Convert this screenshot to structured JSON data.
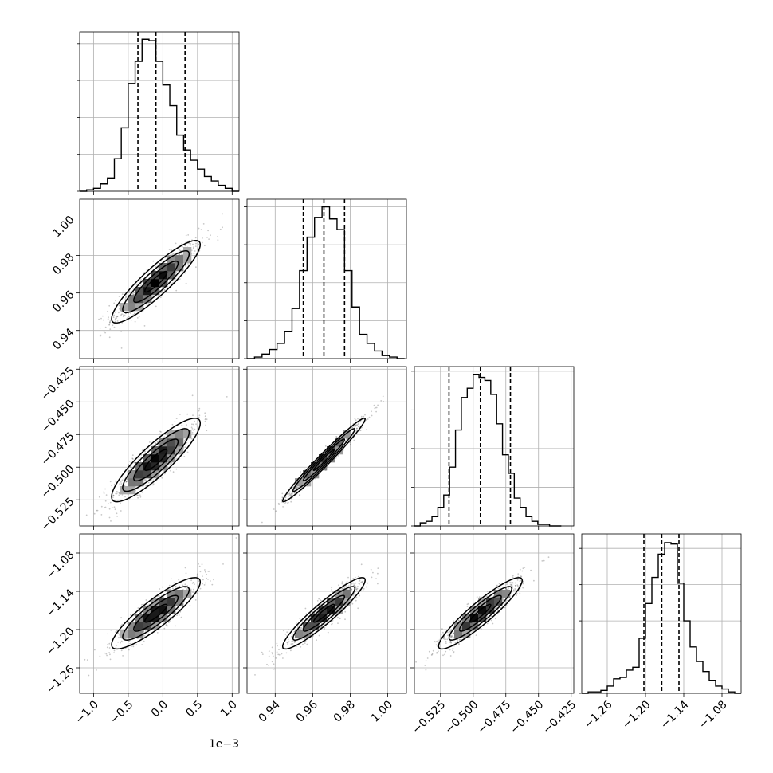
{
  "chart_data": {
    "type": "corner",
    "grid": true,
    "parameters": [
      {
        "key": "p0",
        "range": [
          -1.2,
          1.1
        ],
        "ticks": [
          -1.0,
          -0.5,
          0.0,
          0.5,
          1.0
        ],
        "tick_labels": [
          "−1.0",
          "−0.5",
          "0.0",
          "0.5",
          "1.0"
        ],
        "offset_label": "1e−3",
        "quantiles": [
          -0.36,
          -0.1,
          0.32
        ],
        "hist_centers": [
          -1.15,
          -1.05,
          -0.95,
          -0.85,
          -0.75,
          -0.65,
          -0.55,
          -0.45,
          -0.35,
          -0.25,
          -0.15,
          -0.05,
          0.05,
          0.15,
          0.25,
          0.35,
          0.45,
          0.55,
          0.65,
          0.75,
          0.85,
          0.95,
          1.05
        ],
        "hist_counts": [
          0,
          1,
          2,
          5,
          9,
          22,
          43,
          73,
          88,
          103,
          102,
          88,
          72,
          58,
          38,
          28,
          21,
          15,
          10,
          7,
          4,
          2,
          0
        ],
        "hist_ymax": 108,
        "hist_yticks": [
          0,
          25,
          50,
          75,
          100
        ]
      },
      {
        "key": "p1",
        "range": [
          0.925,
          1.01
        ],
        "ticks": [
          0.94,
          0.96,
          0.98,
          1.0
        ],
        "tick_labels": [
          "0.94",
          "0.96",
          "0.98",
          "1.00"
        ],
        "quantiles": [
          0.955,
          0.966,
          0.977
        ],
        "hist_centers": [
          0.927,
          0.931,
          0.935,
          0.939,
          0.943,
          0.947,
          0.951,
          0.955,
          0.959,
          0.963,
          0.967,
          0.971,
          0.975,
          0.979,
          0.983,
          0.987,
          0.991,
          0.995,
          0.999,
          1.003,
          1.007
        ],
        "hist_counts": [
          0,
          1,
          3,
          6,
          10,
          18,
          33,
          58,
          80,
          93,
          100,
          92,
          85,
          58,
          34,
          16,
          10,
          5,
          2,
          1,
          0
        ],
        "hist_ymax": 105,
        "hist_yticks": [
          0,
          25,
          50,
          75,
          100
        ]
      },
      {
        "key": "p2",
        "range": [
          -0.545,
          -0.423
        ],
        "ticks": [
          -0.525,
          -0.5,
          -0.475,
          -0.45,
          -0.425
        ],
        "tick_labels": [
          "−0.525",
          "−0.500",
          "−0.475",
          "−0.450",
          "−0.425"
        ],
        "quantiles": [
          -0.5185,
          -0.4945,
          -0.4715
        ],
        "hist_centers": [
          -0.5428,
          -0.5383,
          -0.5338,
          -0.5293,
          -0.5248,
          -0.5203,
          -0.5158,
          -0.5113,
          -0.5068,
          -0.5023,
          -0.4978,
          -0.4933,
          -0.4888,
          -0.4843,
          -0.4798,
          -0.4753,
          -0.4708,
          -0.4663,
          -0.4618,
          -0.4573,
          -0.4528,
          -0.4483,
          -0.4438,
          -0.4393,
          -0.4348
        ],
        "hist_counts": [
          0,
          2,
          3,
          6,
          12,
          20,
          38,
          62,
          83,
          89,
          98,
          96,
          94,
          85,
          66,
          46,
          34,
          18,
          12,
          6,
          3,
          1,
          1,
          0,
          0
        ],
        "hist_ymax": 103,
        "hist_yticks": [
          0,
          25,
          50,
          75,
          100
        ]
      },
      {
        "key": "p3",
        "range": [
          -1.3,
          -1.05
        ],
        "ticks": [
          -1.26,
          -1.2,
          -1.14,
          -1.08
        ],
        "tick_labels": [
          "−1.26",
          "−1.20",
          "−1.14",
          "−1.08"
        ],
        "quantiles": [
          -1.2025,
          -1.1745,
          -1.1475
        ],
        "hist_centers": [
          -1.295,
          -1.285,
          -1.275,
          -1.265,
          -1.255,
          -1.245,
          -1.235,
          -1.225,
          -1.215,
          -1.205,
          -1.195,
          -1.185,
          -1.175,
          -1.165,
          -1.155,
          -1.145,
          -1.135,
          -1.125,
          -1.115,
          -1.105,
          -1.095,
          -1.085,
          -1.075,
          -1.065,
          -1.055
        ],
        "hist_counts": [
          0,
          1,
          1,
          2,
          5,
          10,
          11,
          16,
          18,
          38,
          62,
          80,
          96,
          104,
          103,
          76,
          50,
          32,
          22,
          15,
          9,
          5,
          3,
          1,
          0
        ],
        "hist_ymax": 110,
        "hist_yticks": [
          0,
          25,
          50,
          75,
          100
        ]
      }
    ],
    "pairs": [
      {
        "row": 1,
        "col": 0,
        "mean": [
          -0.1,
          0.966
        ],
        "sd": [
          0.32,
          0.011
        ],
        "rho": 0.9,
        "scatter_n": 700
      },
      {
        "row": 2,
        "col": 0,
        "mean": [
          -0.1,
          -0.4945
        ],
        "sd": [
          0.32,
          0.016
        ],
        "rho": 0.88,
        "scatter_n": 700
      },
      {
        "row": 2,
        "col": 1,
        "mean": [
          0.966,
          -0.4945
        ],
        "sd": [
          0.011,
          0.016
        ],
        "rho": 0.98,
        "scatter_n": 700
      },
      {
        "row": 3,
        "col": 0,
        "mean": [
          -0.1,
          -1.1745
        ],
        "sd": [
          0.32,
          0.028
        ],
        "rho": 0.88,
        "scatter_n": 700
      },
      {
        "row": 3,
        "col": 1,
        "mean": [
          0.966,
          -1.1745
        ],
        "sd": [
          0.011,
          0.028
        ],
        "rho": 0.93,
        "scatter_n": 700
      },
      {
        "row": 3,
        "col": 2,
        "mean": [
          -0.4945,
          -1.1745
        ],
        "sd": [
          0.016,
          0.028
        ],
        "rho": 0.92,
        "scatter_n": 700
      }
    ],
    "contour_levels_sigma": [
      0.5,
      1.0,
      1.5,
      2.0
    ]
  }
}
